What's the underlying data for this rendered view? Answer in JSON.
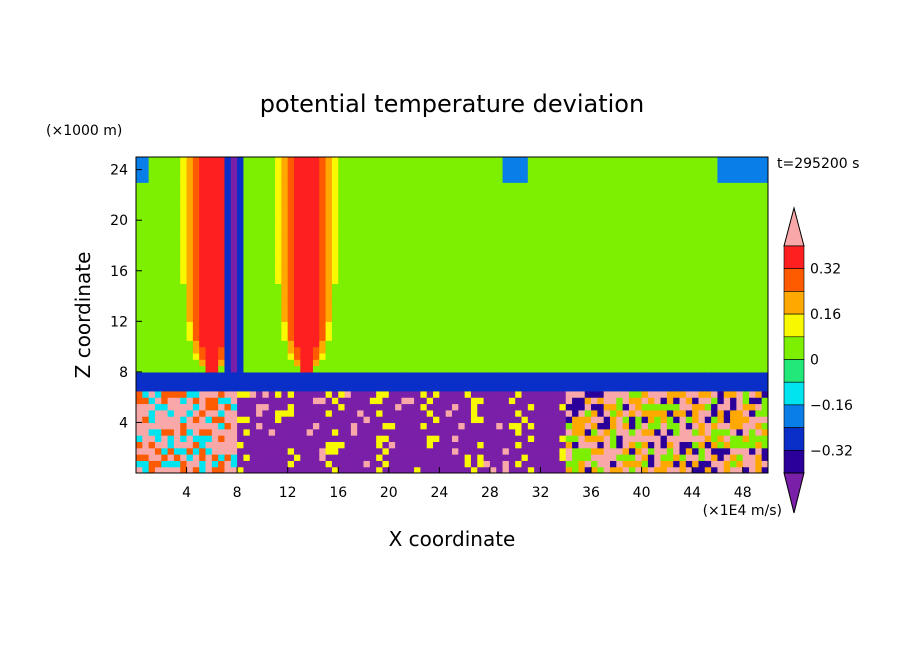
{
  "chart_data": {
    "type": "heatmap",
    "title": "potential temperature deviation",
    "xlabel": "X coordinate",
    "ylabel": "Z coordinate",
    "x_unit": "(×1E4 m/s)",
    "y_unit": "(×1000 m)",
    "time_label": "t=295200 s",
    "xlim": [
      0,
      50
    ],
    "ylim": [
      0,
      25
    ],
    "x_ticks": [
      4,
      8,
      12,
      16,
      20,
      24,
      28,
      32,
      36,
      40,
      44,
      48
    ],
    "y_ticks": [
      4,
      8,
      12,
      16,
      20,
      24
    ],
    "colorbar": {
      "levels": [
        -0.4,
        -0.32,
        -0.24,
        -0.16,
        -0.08,
        0,
        0.08,
        0.16,
        0.24,
        0.32,
        0.4
      ],
      "colors": [
        "#7a1fa8",
        "#2b009a",
        "#0a2fc8",
        "#0a7ee8",
        "#00e4f0",
        "#22e87a",
        "#7cf000",
        "#f8f800",
        "#fea800",
        "#fe5a00",
        "#fe2020",
        "#f8a8a8"
      ],
      "tick_labels": [
        "0.32",
        "0.16",
        "0",
        "−0.16",
        "−0.32"
      ],
      "tick_values": [
        0.32,
        0.16,
        0,
        -0.16,
        -0.32
      ],
      "extend": "both"
    },
    "field_structure": {
      "upper_layer_background": -0.08,
      "boundary_layer_top_z": 7,
      "boundary_layer_mean": -0.4,
      "warm_columns": [
        {
          "x_center": 6,
          "z_top": 25,
          "z_bottom": 7.5,
          "peak": 0.4
        },
        {
          "x_center": 13.5,
          "z_top": 25,
          "z_bottom": 7.5,
          "peak": 0.4
        }
      ],
      "cold_column": {
        "x_center": 7.8,
        "z_top": 25,
        "z_bottom": 7,
        "peak": -0.4
      }
    }
  }
}
